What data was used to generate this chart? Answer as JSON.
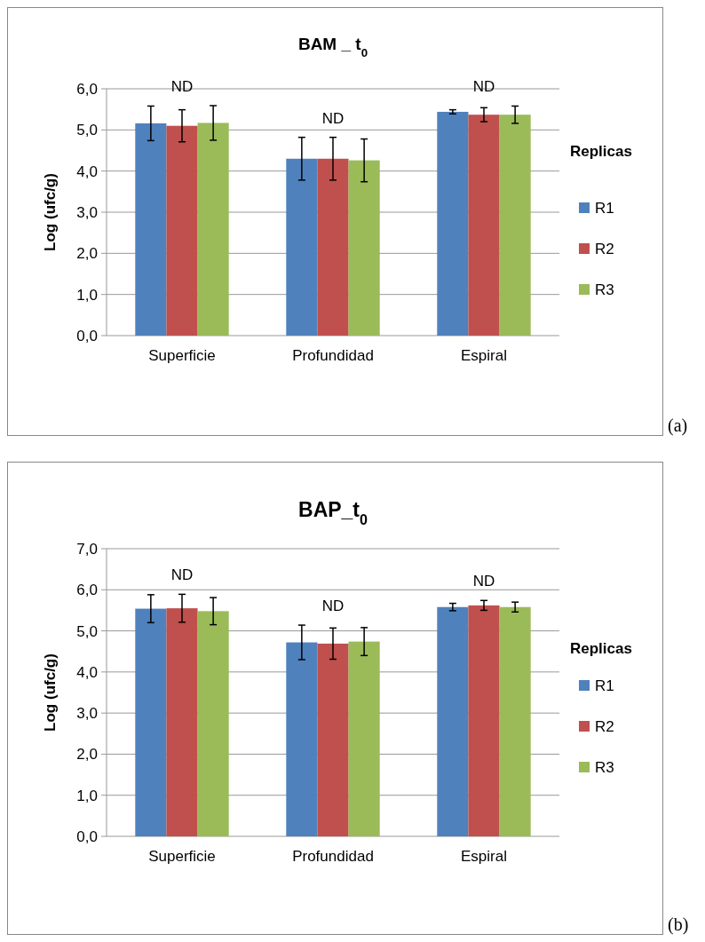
{
  "chart_data": [
    {
      "type": "bar",
      "title": "BAM _ t$_{0}$",
      "ylabel": "Log (ufc/g)",
      "legend_title": "Replicas",
      "legend": "right",
      "grid": "y",
      "categories": [
        "Superficie",
        "Profundidad",
        "Espiral"
      ],
      "ylim": [
        0,
        6
      ],
      "yticks": [
        {
          "value": 0,
          "label": "0,0"
        },
        {
          "value": 1,
          "label": "1,0"
        },
        {
          "value": 2,
          "label": "2,0"
        },
        {
          "value": 3,
          "label": "3,0"
        },
        {
          "value": 4,
          "label": "4,0"
        },
        {
          "value": 5,
          "label": "5,0"
        },
        {
          "value": 6,
          "label": "6,0"
        }
      ],
      "series": [
        {
          "name": "R1",
          "color": "#4f81bd",
          "values": [
            5.16,
            4.3,
            5.44
          ],
          "errors": [
            0.42,
            0.52,
            0.05
          ]
        },
        {
          "name": "R2",
          "color": "#c0504d",
          "values": [
            5.1,
            4.3,
            5.37
          ],
          "errors": [
            0.39,
            0.52,
            0.17
          ]
        },
        {
          "name": "R3",
          "color": "#9bbb59",
          "values": [
            5.17,
            4.26,
            5.37
          ],
          "errors": [
            0.42,
            0.52,
            0.21
          ]
        }
      ],
      "annotations": [
        "ND",
        "ND",
        "ND",
        "(a)"
      ]
    },
    {
      "type": "bar",
      "title": "BAP_t$_{0}$",
      "ylabel": "Log (ufc/g)",
      "legend_title": "Replicas",
      "legend": "right",
      "grid": "y",
      "categories": [
        "Superficie",
        "Profundidad",
        "Espiral"
      ],
      "ylim": [
        0,
        7
      ],
      "yticks": [
        {
          "value": 0,
          "label": "0,0"
        },
        {
          "value": 1,
          "label": "1,0"
        },
        {
          "value": 2,
          "label": "2,0"
        },
        {
          "value": 3,
          "label": "3,0"
        },
        {
          "value": 4,
          "label": "4,0"
        },
        {
          "value": 5,
          "label": "5,0"
        },
        {
          "value": 6,
          "label": "6,0"
        },
        {
          "value": 7,
          "label": "7,0"
        }
      ],
      "series": [
        {
          "name": "R1",
          "color": "#4f81bd",
          "values": [
            5.54,
            4.72,
            5.58
          ],
          "errors": [
            0.34,
            0.42,
            0.09
          ]
        },
        {
          "name": "R2",
          "color": "#c0504d",
          "values": [
            5.55,
            4.69,
            5.62
          ],
          "errors": [
            0.34,
            0.38,
            0.12
          ]
        },
        {
          "name": "R3",
          "color": "#9bbb59",
          "values": [
            5.48,
            4.74,
            5.58
          ],
          "errors": [
            0.33,
            0.34,
            0.12
          ]
        }
      ],
      "annotations": [
        "ND",
        "ND",
        "ND",
        "(b)"
      ]
    }
  ]
}
